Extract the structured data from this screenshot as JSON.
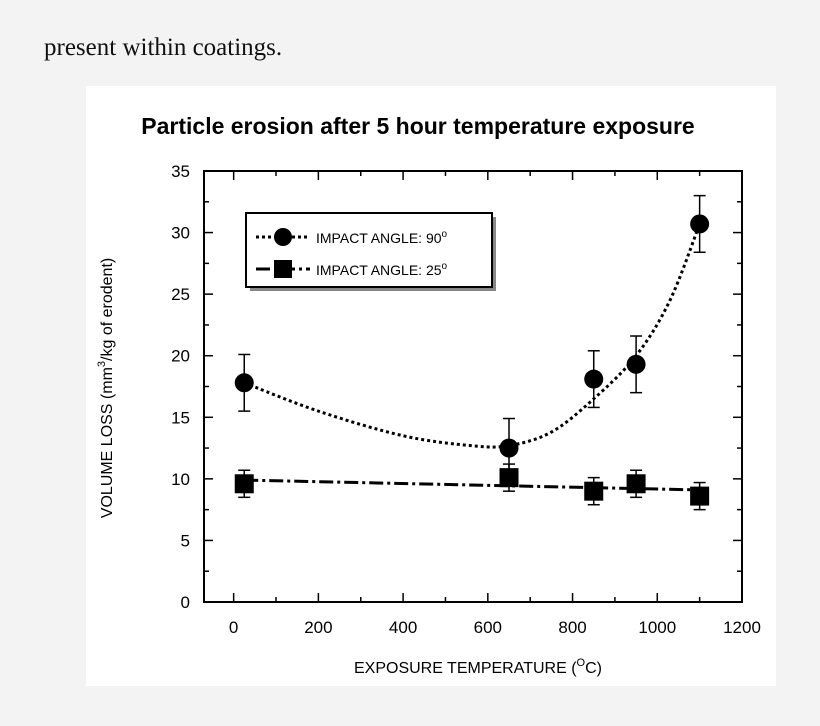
{
  "page": {
    "caption": "present within coatings."
  },
  "chart_data": {
    "type": "scatter",
    "title": "Particle erosion after 5 hour temperature exposure",
    "xlabel_main": "EXPOSURE TEMPERATURE (",
    "xlabel_sup": "O",
    "xlabel_end": "C)",
    "ylabel_main": "VOLUME LOSS (mm",
    "ylabel_sup": "3",
    "ylabel_end": "/kg of erodent)",
    "xlim": [
      -70,
      1200
    ],
    "ylim": [
      0,
      35
    ],
    "x_ticks": [
      0,
      200,
      400,
      600,
      800,
      1000,
      1200
    ],
    "y_ticks": [
      0,
      5,
      10,
      15,
      20,
      25,
      30,
      35
    ],
    "grid": false,
    "legend_placement": "top-left",
    "series": [
      {
        "name": "IMPACT ANGLE: 90",
        "name_sup": "o",
        "marker": "circle",
        "line_style": "dotted",
        "points": [
          {
            "x": 25,
            "y": 17.8,
            "err": 2.3
          },
          {
            "x": 650,
            "y": 12.5,
            "err": 2.4
          },
          {
            "x": 850,
            "y": 18.1,
            "err": 2.3
          },
          {
            "x": 950,
            "y": 19.3,
            "err": 2.3
          },
          {
            "x": 1100,
            "y": 30.7,
            "err": 2.3
          }
        ],
        "curve": [
          [
            25,
            17.8
          ],
          [
            200,
            15.5
          ],
          [
            400,
            13.5
          ],
          [
            560,
            12.7
          ],
          [
            650,
            12.7
          ],
          [
            750,
            13.8
          ],
          [
            850,
            16.5
          ],
          [
            950,
            20.0
          ],
          [
            1030,
            24.5
          ],
          [
            1100,
            30.7
          ]
        ]
      },
      {
        "name": "IMPACT ANGLE: 25",
        "name_sup": "o",
        "marker": "square",
        "line_style": "dashed",
        "points": [
          {
            "x": 25,
            "y": 9.6,
            "err": 1.1
          },
          {
            "x": 650,
            "y": 10.1,
            "err": 1.1
          },
          {
            "x": 850,
            "y": 9.0,
            "err": 1.1
          },
          {
            "x": 950,
            "y": 9.6,
            "err": 1.1
          },
          {
            "x": 1100,
            "y": 8.6,
            "err": 1.1
          }
        ],
        "curve": [
          [
            25,
            9.9
          ],
          [
            1100,
            9.1
          ]
        ]
      }
    ]
  }
}
